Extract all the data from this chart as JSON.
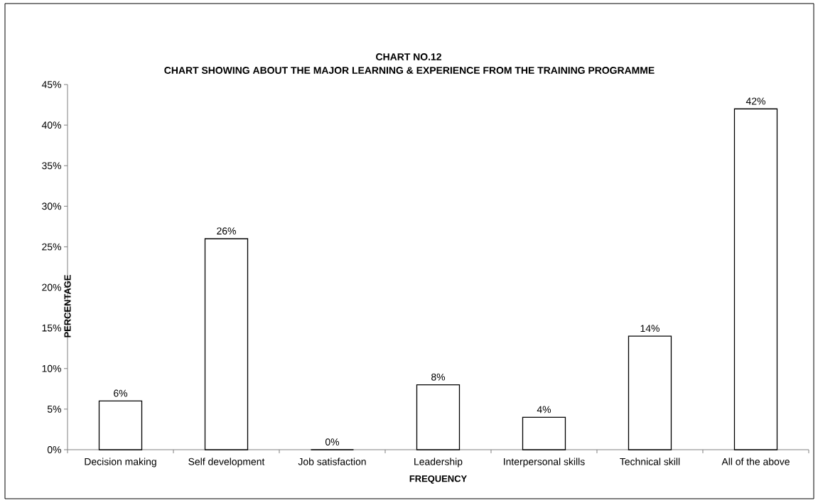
{
  "chart_data": {
    "type": "bar",
    "title": "CHART NO.12",
    "subtitle": "CHART SHOWING ABOUT THE MAJOR LEARNING & EXPERIENCE FROM THE TRAINING PROGRAMME",
    "xlabel": "FREQUENCY",
    "ylabel": "PERCENTAGE",
    "categories": [
      "Decision making",
      "Self development",
      "Job satisfaction",
      "Leadership",
      "Interpersonal skills",
      "Technical skill",
      "All of the above"
    ],
    "values": [
      6,
      26,
      0,
      8,
      4,
      14,
      42
    ],
    "value_labels": [
      "6%",
      "26%",
      "0%",
      "8%",
      "4%",
      "14%",
      "42%"
    ],
    "color": "#000000",
    "ylim": [
      0,
      45
    ],
    "yticks": [
      {
        "value": 0,
        "label": "0%"
      },
      {
        "value": 5,
        "label": "5%"
      },
      {
        "value": 10,
        "label": "10%"
      },
      {
        "value": 15,
        "label": "15%"
      },
      {
        "value": 20,
        "label": "20%"
      },
      {
        "value": 25,
        "label": "25%"
      },
      {
        "value": 30,
        "label": "30%"
      },
      {
        "value": 35,
        "label": "35%"
      },
      {
        "value": 40,
        "label": "40%"
      },
      {
        "value": 45,
        "label": "45%"
      }
    ]
  }
}
